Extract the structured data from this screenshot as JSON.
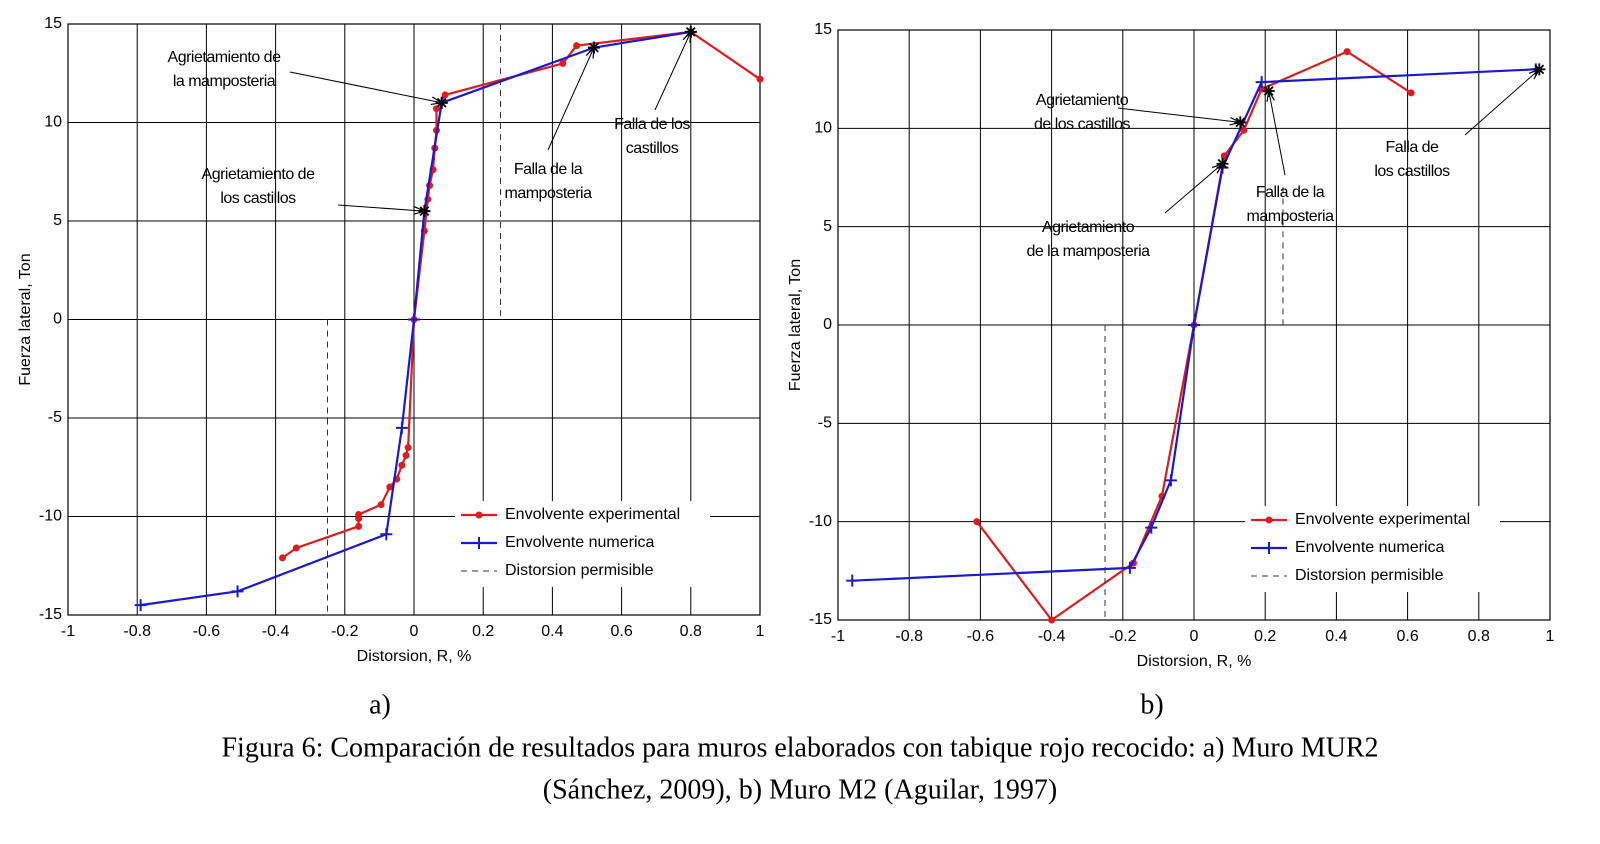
{
  "chart_data": [
    {
      "type": "line",
      "label": "a)",
      "xlabel": "Distorsion, R, %",
      "ylabel": "Fuerza lateral, Ton",
      "xlim": [
        -1,
        1
      ],
      "ylim": [
        -15,
        15
      ],
      "xticks": [
        -1,
        -0.8,
        -0.6,
        -0.4,
        -0.2,
        0,
        0.2,
        0.4,
        0.6,
        0.8,
        1
      ],
      "yticks": [
        -15,
        -10,
        -5,
        0,
        5,
        10,
        15
      ],
      "grid": true,
      "legend": "lower right",
      "series": [
        {
          "name": "Envolvente experimental",
          "color": "#dd1c1c",
          "marker": "dot",
          "linestyle": "solid",
          "x": [
            -0.38,
            -0.34,
            -0.16,
            -0.16,
            -0.16,
            -0.095,
            -0.07,
            -0.05,
            -0.035,
            -0.023,
            -0.017,
            0,
            0.03,
            0.04,
            0.045,
            0.055,
            0.06,
            0.065,
            0.065,
            0.09,
            0.43,
            0.47,
            0.8,
            1.0
          ],
          "values": [
            -12.1,
            -11.6,
            -10.5,
            -10.1,
            -9.9,
            -9.4,
            -8.5,
            -8.1,
            -7.4,
            -6.9,
            -6.5,
            0,
            4.5,
            6.1,
            6.8,
            7.6,
            8.7,
            9.6,
            10.7,
            11.4,
            13.0,
            13.9,
            14.6,
            12.2
          ]
        },
        {
          "name": "Envolvente numerica",
          "color": "#1a1acc",
          "marker": "plus",
          "linestyle": "solid",
          "x": [
            -0.79,
            -0.51,
            -0.08,
            -0.035,
            0,
            0.03,
            0.08,
            0.52,
            0.8
          ],
          "values": [
            -14.5,
            -13.8,
            -10.9,
            -5.5,
            0,
            5.5,
            11.0,
            13.8,
            14.6
          ]
        },
        {
          "name": "Distorsion permisible",
          "color": "#333333",
          "marker": "none",
          "linestyle": "dashed",
          "x": [
            0.25,
            0.25,
            null,
            -0.25,
            -0.25
          ],
          "values": [
            15,
            0,
            null,
            0,
            -15
          ]
        }
      ],
      "annotations": [
        {
          "lines": [
            "Agrietamiento de",
            "la mamposteria"
          ],
          "xy": [
            0.08,
            11.0
          ]
        },
        {
          "lines": [
            "Agrietamiento de",
            "los castillos"
          ],
          "xy": [
            0.03,
            5.5
          ]
        },
        {
          "lines": [
            "Falla de la",
            "mamposteria"
          ],
          "xy": [
            0.52,
            13.8
          ]
        },
        {
          "lines": [
            "Falla de los",
            "castillos"
          ],
          "xy": [
            0.8,
            14.6
          ]
        }
      ]
    },
    {
      "type": "line",
      "label": "b)",
      "xlabel": "Distorsion, R, %",
      "ylabel": "Fuerza lateral, Ton",
      "xlim": [
        -1,
        1
      ],
      "ylim": [
        -15,
        15
      ],
      "xticks": [
        -1,
        -0.8,
        -0.6,
        -0.4,
        -0.2,
        0,
        0.2,
        0.4,
        0.6,
        0.8,
        1
      ],
      "yticks": [
        -15,
        -10,
        -5,
        0,
        5,
        10,
        15
      ],
      "grid": true,
      "legend": "lower right",
      "series": [
        {
          "name": "Envolvente experimental",
          "color": "#dd1c1c",
          "marker": "dot",
          "linestyle": "solid",
          "x": [
            -0.61,
            -0.4,
            -0.17,
            -0.09,
            0,
            0.085,
            0.14,
            0.19,
            0.43,
            0.61
          ],
          "values": [
            -10.0,
            -15.0,
            -12.1,
            -8.7,
            0,
            8.6,
            9.9,
            12.0,
            13.9,
            11.8
          ]
        },
        {
          "name": "Envolvente numerica",
          "color": "#1a1acc",
          "marker": "plus",
          "linestyle": "solid",
          "x": [
            -0.96,
            -0.18,
            -0.12,
            -0.065,
            0,
            0.08,
            0.19,
            0.96
          ],
          "values": [
            -13.0,
            -12.35,
            -10.3,
            -7.9,
            0,
            8.0,
            12.35,
            13.0
          ]
        },
        {
          "name": "Distorsion permisible",
          "color": "#333333",
          "marker": "none",
          "linestyle": "dashed",
          "x": [
            0.25,
            0.25,
            null,
            -0.25,
            -0.25
          ],
          "values": [
            7,
            0,
            null,
            0,
            -15
          ]
        }
      ],
      "annotations": [
        {
          "lines": [
            "Agrietamiento",
            "de los castillos"
          ],
          "xy": [
            0.13,
            10.3
          ]
        },
        {
          "lines": [
            "Agrietamiento",
            "de la mamposteria"
          ],
          "xy": [
            0.08,
            8.2
          ]
        },
        {
          "lines": [
            "Falla de la",
            "mamposteria"
          ],
          "xy": [
            0.21,
            11.9
          ]
        },
        {
          "lines": [
            "Falla de",
            "los castillos"
          ],
          "xy": [
            0.97,
            13.0
          ]
        }
      ]
    }
  ],
  "caption": [
    "Figura 6: Comparación de resultados para muros elaborados con tabique rojo recocido: a) Muro MUR2",
    "(Sánchez, 2009), b) Muro M2 (Aguilar, 1997)"
  ]
}
